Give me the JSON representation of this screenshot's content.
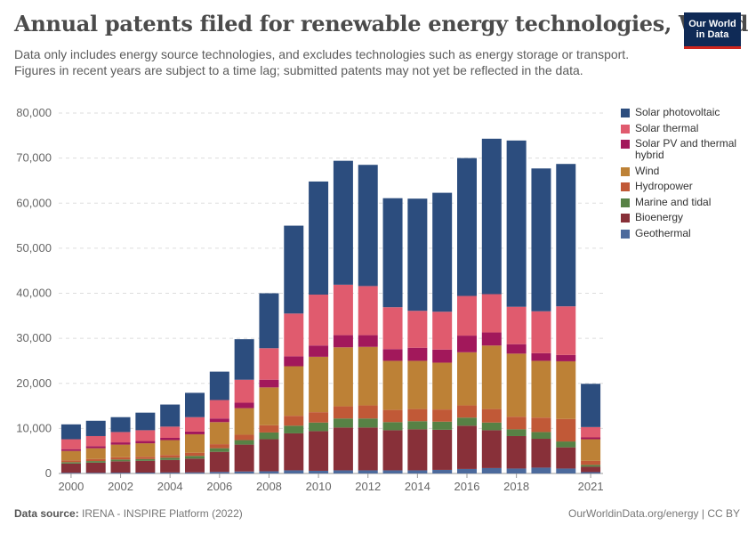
{
  "header": {
    "title": "Annual patents filed for renewable energy technologies, World",
    "subtitle": "Data only includes energy source technologies, and excludes technologies such as energy storage or transport. Figures in recent years are subject to a time lag; submitted patents may not yet be reflected in the data.",
    "logo_line1": "Our World",
    "logo_line2": "in Data"
  },
  "footer": {
    "source_label": "Data source:",
    "source_text": "IRENA - INSPIRE Platform (2022)",
    "url_text": "OurWorldinData.org/energy | CC BY"
  },
  "chart_data": {
    "type": "stacked-bar",
    "title": "Annual patents filed for renewable energy technologies, World",
    "categories": [
      "2000",
      "2001",
      "2002",
      "2003",
      "2004",
      "2005",
      "2006",
      "2007",
      "2008",
      "2009",
      "2010",
      "2011",
      "2012",
      "2013",
      "2014",
      "2015",
      "2016",
      "2017",
      "2018",
      "2019",
      "2020",
      "2021"
    ],
    "x_tick_labels": [
      "2000",
      "2002",
      "2004",
      "2006",
      "2008",
      "2010",
      "2012",
      "2014",
      "2016",
      "2018",
      "2021"
    ],
    "ylim": [
      0,
      80000
    ],
    "y_ticks": [
      0,
      10000,
      20000,
      30000,
      40000,
      50000,
      60000,
      70000,
      80000
    ],
    "y_tick_labels": [
      "0",
      "10,000",
      "20,000",
      "30,000",
      "40,000",
      "50,000",
      "60,000",
      "70,000",
      "80,000"
    ],
    "grid": true,
    "legend_position": "right",
    "series": [
      {
        "name": "Geothermal",
        "color": "#4c6a9c",
        "values": [
          150,
          150,
          180,
          200,
          220,
          250,
          350,
          450,
          500,
          700,
          600,
          700,
          700,
          700,
          700,
          800,
          1000,
          1200,
          1100,
          1300,
          1100,
          300
        ]
      },
      {
        "name": "Bioenergy",
        "color": "#883039",
        "values": [
          2050,
          2250,
          2520,
          2600,
          2780,
          3050,
          4450,
          5950,
          7100,
          8200,
          8800,
          9500,
          9500,
          8900,
          9100,
          8900,
          9600,
          8400,
          7200,
          6400,
          4700,
          1200
        ]
      },
      {
        "name": "Marine and tidal",
        "color": "#578145",
        "values": [
          300,
          350,
          400,
          400,
          500,
          600,
          800,
          1000,
          1500,
          1700,
          1900,
          2000,
          2000,
          1800,
          1800,
          1800,
          1800,
          1700,
          1500,
          1500,
          1300,
          400
        ]
      },
      {
        "name": "Hydropower",
        "color": "#c15937",
        "values": [
          400,
          450,
          500,
          500,
          600,
          700,
          900,
          1200,
          1600,
          2200,
          2300,
          2700,
          2900,
          2700,
          2700,
          2700,
          2700,
          3000,
          2800,
          3200,
          5000,
          900
        ]
      },
      {
        "name": "Wind",
        "color": "#bd8136",
        "values": [
          2100,
          2400,
          2800,
          3000,
          3300,
          4100,
          4900,
          5900,
          8400,
          11000,
          12300,
          13100,
          13000,
          10900,
          10700,
          10400,
          11800,
          14100,
          14000,
          12600,
          12800,
          4800
        ]
      },
      {
        "name": "Solar PV and thermal hybrid",
        "color": "#a2185b",
        "values": [
          400,
          450,
          500,
          500,
          500,
          600,
          800,
          1200,
          1700,
          2200,
          2500,
          2700,
          2600,
          2600,
          2900,
          2900,
          3700,
          2900,
          2100,
          1700,
          1400,
          400
        ]
      },
      {
        "name": "Solar thermal",
        "color": "#e05b6e",
        "values": [
          2200,
          2250,
          2300,
          2400,
          2500,
          3200,
          4100,
          5100,
          7000,
          9500,
          11300,
          11200,
          10900,
          9300,
          8200,
          8400,
          8800,
          8500,
          8300,
          9300,
          10800,
          2300
        ]
      },
      {
        "name": "Solar photovoltaic",
        "color": "#2c4d7e",
        "values": [
          3300,
          3400,
          3300,
          3900,
          4900,
          5400,
          6300,
          9000,
          12200,
          19500,
          25100,
          27500,
          26900,
          24200,
          24900,
          26400,
          30600,
          34500,
          36900,
          31700,
          31600,
          9600
        ]
      }
    ]
  }
}
